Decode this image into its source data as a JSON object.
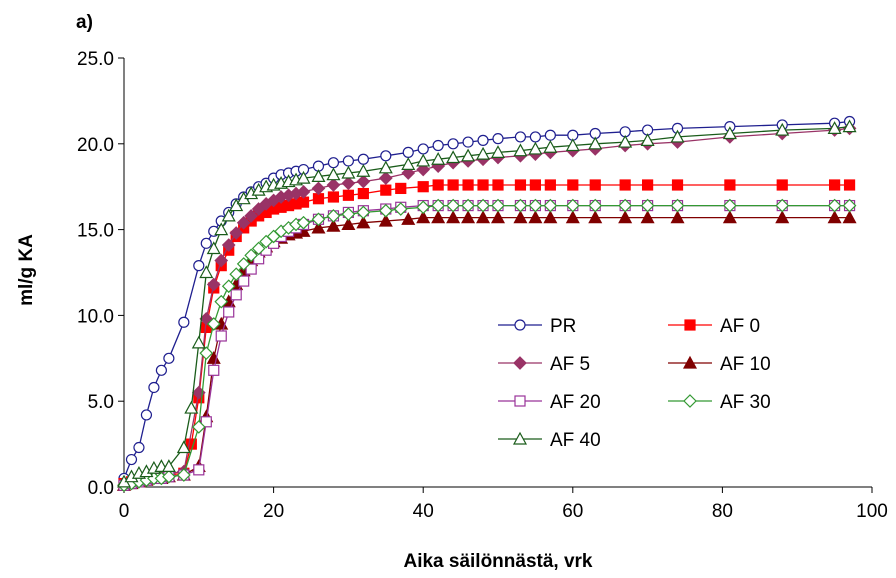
{
  "panel_label": "a)",
  "chart_data": {
    "type": "line",
    "xlabel": "Aika säilönnästä, vrk",
    "ylabel": "ml/g KA",
    "xlim": [
      0,
      100
    ],
    "ylim": [
      0,
      25
    ],
    "xticks": [
      0,
      20,
      40,
      60,
      80,
      100
    ],
    "yticks": [
      0,
      5,
      10,
      15,
      20,
      25
    ],
    "xtick_labels": [
      "0",
      "20",
      "40",
      "60",
      "80",
      "100"
    ],
    "ytick_labels": [
      "0.0",
      "5.0",
      "10.0",
      "15.0",
      "20.0",
      "25.0"
    ],
    "grid": false,
    "legend_position": "center-right",
    "series": [
      {
        "name": "PR",
        "color": "#1f1f8f",
        "marker": "circle-open",
        "x": [
          0,
          1,
          2,
          3,
          4,
          5,
          6,
          8,
          10,
          11,
          12,
          13,
          14,
          15,
          16,
          17,
          18,
          19,
          20,
          21,
          22,
          23,
          24,
          26,
          28,
          30,
          32,
          35,
          38,
          40,
          42,
          44,
          46,
          48,
          50,
          53,
          55,
          57,
          60,
          63,
          67,
          70,
          74,
          81,
          88,
          95,
          97
        ],
        "y": [
          0.5,
          1.6,
          2.3,
          4.2,
          5.8,
          6.8,
          7.5,
          9.6,
          12.9,
          14.2,
          14.9,
          15.5,
          16.0,
          16.5,
          16.9,
          17.2,
          17.5,
          17.7,
          18.0,
          18.2,
          18.3,
          18.4,
          18.5,
          18.7,
          18.9,
          19.0,
          19.1,
          19.3,
          19.5,
          19.7,
          19.9,
          20.0,
          20.1,
          20.2,
          20.3,
          20.4,
          20.4,
          20.5,
          20.5,
          20.6,
          20.7,
          20.8,
          20.9,
          21.0,
          21.1,
          21.2,
          21.3
        ]
      },
      {
        "name": "AF 0",
        "color": "#ff0000",
        "marker": "square-filled",
        "x": [
          0,
          1,
          2,
          3,
          4,
          5,
          6,
          8,
          9,
          10,
          11,
          12,
          13,
          14,
          15,
          16,
          17,
          18,
          19,
          20,
          21,
          22,
          23,
          24,
          26,
          28,
          30,
          32,
          35,
          37,
          40,
          42,
          44,
          46,
          48,
          50,
          53,
          55,
          57,
          60,
          63,
          67,
          70,
          74,
          81,
          88,
          95,
          97
        ],
        "y": [
          0.2,
          0.3,
          0.4,
          0.5,
          0.6,
          0.6,
          0.7,
          0.8,
          2.5,
          5.2,
          9.3,
          11.6,
          12.9,
          13.8,
          14.6,
          15.1,
          15.5,
          15.8,
          16.0,
          16.2,
          16.3,
          16.4,
          16.5,
          16.6,
          16.8,
          16.9,
          17.0,
          17.1,
          17.3,
          17.4,
          17.5,
          17.6,
          17.6,
          17.6,
          17.6,
          17.6,
          17.6,
          17.6,
          17.6,
          17.6,
          17.6,
          17.6,
          17.6,
          17.6,
          17.6,
          17.6,
          17.6,
          17.6
        ]
      },
      {
        "name": "AF 5",
        "color": "#993366",
        "marker": "diamond-filled",
        "x": [
          0,
          1,
          2,
          3,
          4,
          5,
          6,
          8,
          10,
          11,
          12,
          13,
          14,
          15,
          16,
          17,
          18,
          19,
          20,
          21,
          22,
          23,
          24,
          26,
          28,
          30,
          32,
          35,
          38,
          40,
          42,
          44,
          46,
          48,
          50,
          53,
          55,
          57,
          60,
          63,
          67,
          70,
          74,
          81,
          88,
          95,
          97
        ],
        "y": [
          0.1,
          0.3,
          0.5,
          0.6,
          0.7,
          0.7,
          0.8,
          0.9,
          5.5,
          9.8,
          11.8,
          13.2,
          14.1,
          14.8,
          15.4,
          15.8,
          16.2,
          16.5,
          16.7,
          16.9,
          17.0,
          17.1,
          17.2,
          17.4,
          17.6,
          17.7,
          17.8,
          18.0,
          18.3,
          18.5,
          18.7,
          18.9,
          19.0,
          19.1,
          19.2,
          19.3,
          19.4,
          19.5,
          19.6,
          19.7,
          19.9,
          20.0,
          20.1,
          20.4,
          20.6,
          20.8,
          20.9
        ]
      },
      {
        "name": "AF 10",
        "color": "#800000",
        "marker": "triangle-filled",
        "x": [
          0,
          1,
          2,
          3,
          4,
          5,
          6,
          8,
          10,
          11,
          12,
          13,
          14,
          15,
          16,
          17,
          18,
          19,
          20,
          21,
          22,
          23,
          24,
          26,
          28,
          30,
          32,
          35,
          38,
          40,
          42,
          44,
          46,
          48,
          50,
          53,
          55,
          57,
          60,
          63,
          67,
          70,
          74,
          81,
          88,
          95,
          97
        ],
        "y": [
          0.1,
          0.2,
          0.3,
          0.4,
          0.5,
          0.5,
          0.6,
          0.7,
          1.2,
          4.1,
          7.5,
          9.5,
          10.8,
          11.8,
          12.6,
          13.2,
          13.7,
          14.0,
          14.3,
          14.5,
          14.7,
          14.8,
          14.9,
          15.1,
          15.2,
          15.3,
          15.4,
          15.5,
          15.6,
          15.7,
          15.7,
          15.7,
          15.7,
          15.7,
          15.7,
          15.7,
          15.7,
          15.7,
          15.7,
          15.7,
          15.7,
          15.7,
          15.7,
          15.7,
          15.7,
          15.7,
          15.7
        ]
      },
      {
        "name": "AF 20",
        "color": "#993399",
        "marker": "square-open",
        "x": [
          0,
          1,
          2,
          3,
          4,
          5,
          6,
          8,
          10,
          11,
          12,
          13,
          14,
          15,
          16,
          17,
          18,
          19,
          20,
          21,
          22,
          23,
          24,
          26,
          28,
          30,
          32,
          35,
          37,
          40,
          42,
          44,
          46,
          48,
          50,
          53,
          55,
          57,
          60,
          63,
          67,
          70,
          74,
          81,
          88,
          95,
          97
        ],
        "y": [
          0.1,
          0.2,
          0.3,
          0.4,
          0.5,
          0.5,
          0.6,
          0.7,
          1.0,
          3.8,
          6.8,
          8.8,
          10.2,
          11.2,
          12.0,
          12.7,
          13.3,
          13.8,
          14.2,
          14.6,
          14.9,
          15.1,
          15.3,
          15.6,
          15.8,
          16.0,
          16.1,
          16.2,
          16.3,
          16.4,
          16.4,
          16.4,
          16.4,
          16.4,
          16.4,
          16.4,
          16.4,
          16.4,
          16.4,
          16.4,
          16.4,
          16.4,
          16.4,
          16.4,
          16.4,
          16.4,
          16.4
        ]
      },
      {
        "name": "AF 30",
        "color": "#339933",
        "marker": "diamond-open",
        "x": [
          0,
          1,
          2,
          3,
          4,
          5,
          6,
          8,
          10,
          11,
          12,
          13,
          14,
          15,
          16,
          17,
          18,
          19,
          20,
          21,
          22,
          23,
          24,
          26,
          28,
          30,
          32,
          35,
          37,
          40,
          42,
          44,
          46,
          48,
          50,
          53,
          55,
          57,
          60,
          63,
          67,
          70,
          74,
          81,
          88,
          95,
          97
        ],
        "y": [
          0.1,
          0.2,
          0.3,
          0.4,
          0.5,
          0.5,
          0.6,
          0.7,
          3.5,
          7.8,
          9.5,
          10.8,
          11.7,
          12.4,
          13.0,
          13.5,
          13.9,
          14.3,
          14.6,
          14.9,
          15.1,
          15.3,
          15.4,
          15.6,
          15.8,
          15.9,
          16.0,
          16.1,
          16.2,
          16.3,
          16.4,
          16.4,
          16.4,
          16.4,
          16.4,
          16.4,
          16.4,
          16.4,
          16.4,
          16.4,
          16.4,
          16.4,
          16.4,
          16.4,
          16.4,
          16.4,
          16.4
        ]
      },
      {
        "name": "AF 40",
        "color": "#1a5c1a",
        "marker": "triangle-open",
        "x": [
          0,
          1,
          2,
          3,
          4,
          5,
          6,
          8,
          9,
          10,
          11,
          12,
          13,
          14,
          15,
          16,
          17,
          18,
          19,
          20,
          21,
          22,
          23,
          24,
          26,
          28,
          30,
          32,
          35,
          38,
          40,
          42,
          44,
          46,
          48,
          50,
          53,
          55,
          57,
          60,
          63,
          67,
          70,
          74,
          81,
          88,
          95,
          97
        ],
        "y": [
          0.3,
          0.6,
          0.8,
          0.9,
          1.1,
          1.2,
          1.2,
          2.3,
          4.6,
          8.4,
          12.5,
          13.9,
          15.0,
          15.8,
          16.4,
          16.8,
          17.1,
          17.3,
          17.5,
          17.6,
          17.7,
          17.8,
          17.9,
          18.0,
          18.1,
          18.2,
          18.3,
          18.4,
          18.6,
          18.8,
          19.0,
          19.1,
          19.2,
          19.3,
          19.4,
          19.5,
          19.6,
          19.7,
          19.8,
          19.9,
          20.0,
          20.1,
          20.2,
          20.4,
          20.6,
          20.8,
          20.9,
          21.0
        ]
      }
    ]
  }
}
